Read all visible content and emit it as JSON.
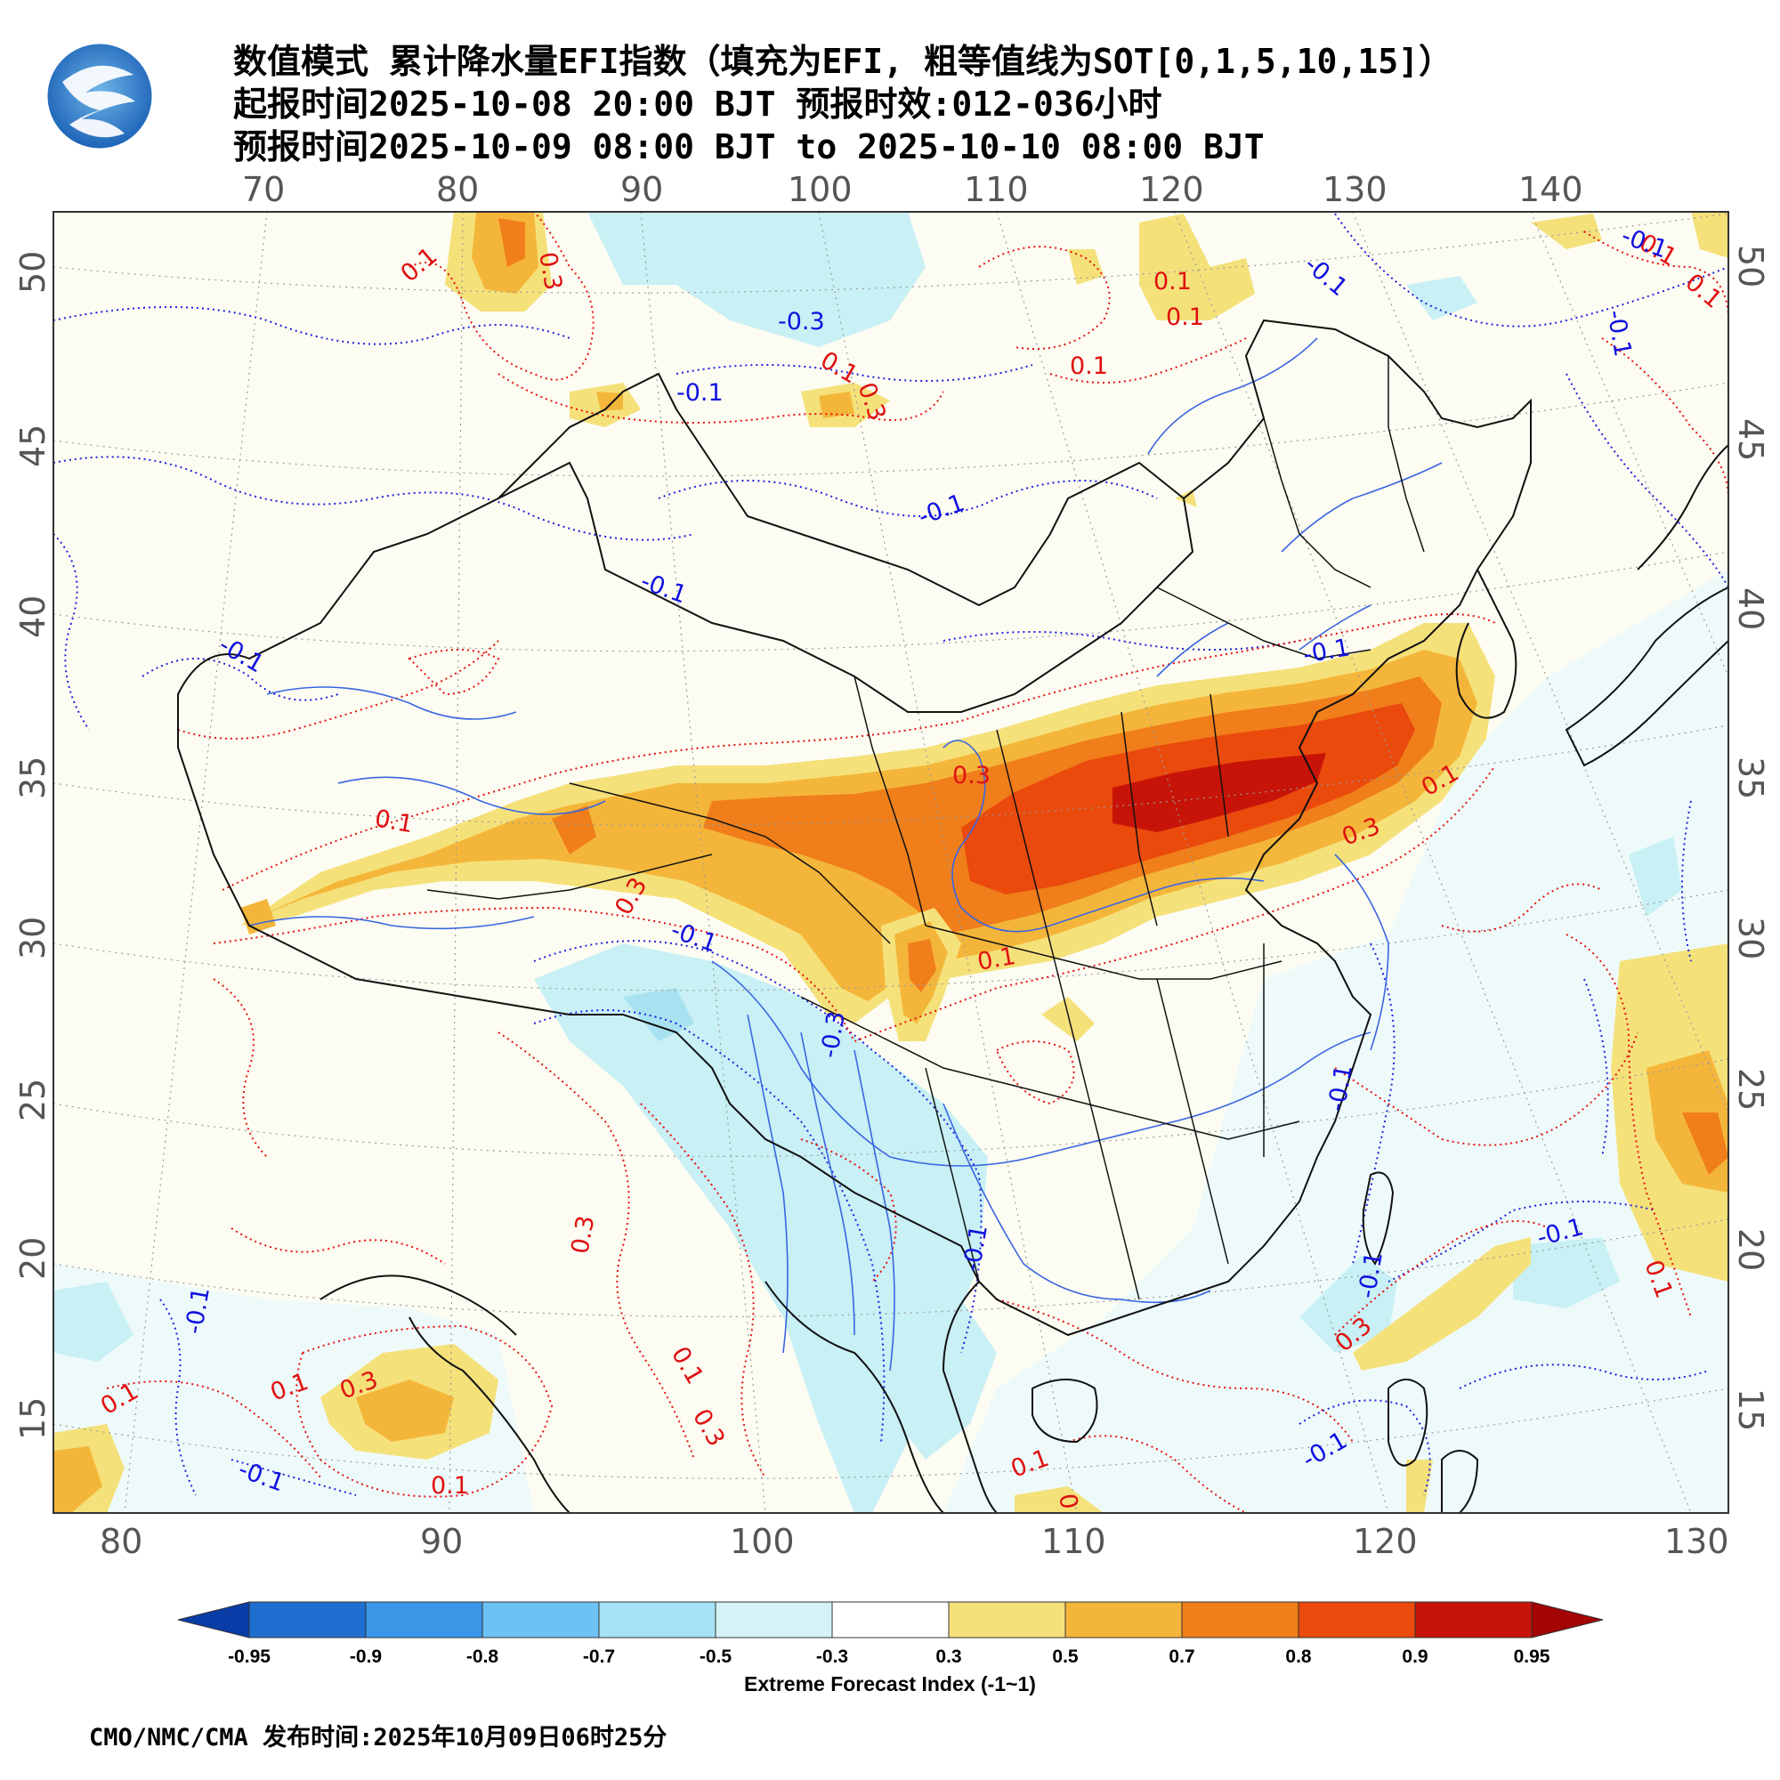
{
  "header": {
    "title_line1": "数值模式 累计降水量EFI指数（填充为EFI, 粗等值线为SOT[0,1,5,10,15]）",
    "title_line2": "起报时间2025-10-08 20:00 BJT 预报时效:012-036小时",
    "title_line3": "预报时间2025-10-09 08:00 BJT to 2025-10-10 08:00 BJT"
  },
  "logo": {
    "icon": "cma-logo-icon"
  },
  "map": {
    "top_lon_ticks": [
      "70",
      "80",
      "90",
      "100",
      "110",
      "120",
      "130",
      "140"
    ],
    "bottom_lon_ticks": [
      "80",
      "90",
      "100",
      "110",
      "120",
      "130"
    ],
    "left_lat_ticks": [
      "50",
      "45",
      "40",
      "35",
      "30",
      "25",
      "20",
      "15"
    ],
    "right_lat_ticks": [
      "50",
      "45",
      "40",
      "35",
      "30",
      "25",
      "20",
      "15"
    ],
    "contour_labels": {
      "red": [
        "0.1",
        "0.3",
        "0.1",
        "0.3",
        "0.1",
        "0.1",
        "0.1",
        "0.3",
        "0.3",
        "0.1",
        "0.1",
        "0.3",
        "0.1",
        "0.3",
        "0.1",
        "0.3",
        "0.1",
        "0.1",
        "0.1",
        "0.3",
        "0.1",
        "0.1",
        "0.3",
        "0.1",
        "0.1",
        "0.3"
      ],
      "blue": [
        "-0.1",
        "-0.3",
        "-0.1",
        "-0.1",
        "-0.1",
        "-0.1",
        "-0.1",
        "-0.1",
        "-0.1",
        "-0.3",
        "-0.1",
        "-0.1",
        "-0.1",
        "-0.1",
        "-0.1",
        "-0.1",
        "-0.1",
        "-0.1"
      ]
    },
    "efi_colors": {
      "pos_03": "#f5e17a",
      "pos_05": "#f4b63a",
      "pos_07": "#f07e1a",
      "pos_08": "#ea4a0c",
      "pos_09": "#c81408",
      "neg_03": "#c8f0f5",
      "neg_05": "#a8e2f0",
      "ocean_tint": "#eefafa",
      "land_tint": "#fcfcf2"
    }
  },
  "colorbar": {
    "ticks": [
      "-0.95",
      "-0.9",
      "-0.8",
      "-0.7",
      "-0.5",
      "-0.3",
      "0.3",
      "0.5",
      "0.7",
      "0.8",
      "0.9",
      "0.95"
    ],
    "colors": [
      "#0a3ca8",
      "#1e6fd0",
      "#3a97e8",
      "#6cc2f2",
      "#a6e2f5",
      "#d4f3f6",
      "#ffffff",
      "#f5e17a",
      "#f4b63a",
      "#f07e1a",
      "#ea4a0c",
      "#c81408",
      "#a30404"
    ],
    "title": "Extreme Forecast Index (-1~1)"
  },
  "footer": {
    "text": "CMO/NMC/CMA 发布时间:2025年10月09日06时25分"
  }
}
